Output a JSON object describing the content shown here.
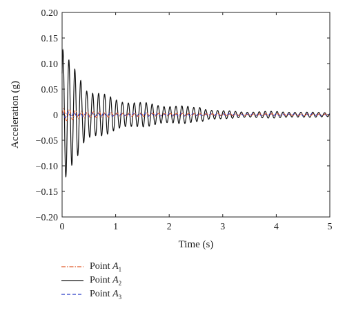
{
  "chart_data": {
    "type": "line",
    "title": "",
    "xlabel": "Time (s)",
    "ylabel": "Acceleration (g)",
    "xlim": [
      0,
      5
    ],
    "ylim": [
      -0.2,
      0.2
    ],
    "xticks": [
      0,
      1,
      2,
      3,
      4,
      5
    ],
    "xtick_labels": [
      "0",
      "1",
      "2",
      "3",
      "4",
      "5"
    ],
    "yticks": [
      0.2,
      0.15,
      0.1,
      0.05,
      0,
      -0.05,
      -0.1,
      -0.15,
      -0.2
    ],
    "ytick_labels": [
      "0.20",
      "0.15",
      "0.10",
      "0.05",
      "0",
      "−0.05",
      "−0.10",
      "−0.15",
      "−0.20"
    ],
    "grid": false,
    "legend_position": "below-left",
    "series": [
      {
        "name": "Point A1",
        "label_prefix": "Point ",
        "label_symbol": "A",
        "label_subscript": "1",
        "color": "#e05a2b",
        "style": "dash-dot",
        "envelope": {
          "t": [
            0,
            0.1,
            0.3,
            0.6,
            1.0,
            2.0,
            3.0,
            5.0
          ],
          "amp": [
            0.012,
            0.012,
            0.01,
            0.006,
            0.004,
            0.003,
            0.002,
            0.002
          ]
        }
      },
      {
        "name": "Point A2",
        "label_prefix": "Point ",
        "label_symbol": "A",
        "label_subscript": "2",
        "color": "#111111",
        "style": "solid",
        "envelope": {
          "t": [
            0,
            0.05,
            0.1,
            0.2,
            0.3,
            0.45,
            0.6,
            1.0,
            1.4,
            2.0,
            2.5,
            2.6,
            2.7,
            3.0,
            3.5,
            4.0,
            4.5,
            5.0
          ],
          "amp": [
            0.125,
            0.13,
            0.115,
            0.11,
            0.1,
            0.06,
            0.045,
            0.035,
            0.025,
            0.02,
            0.015,
            0.018,
            0.012,
            0.008,
            0.006,
            0.007,
            0.005,
            0.005
          ]
        }
      },
      {
        "name": "Point A3",
        "label_prefix": "Point ",
        "label_symbol": "A",
        "label_subscript": "3",
        "color": "#2b3fc6",
        "style": "dashed",
        "envelope": {
          "t": [
            0,
            0.1,
            0.3,
            0.6,
            1.0,
            2.0,
            3.0,
            5.0
          ],
          "amp": [
            0.006,
            0.006,
            0.005,
            0.004,
            0.003,
            0.003,
            0.002,
            0.002
          ]
        }
      }
    ],
    "oscillation_frequency_hz": 9
  }
}
